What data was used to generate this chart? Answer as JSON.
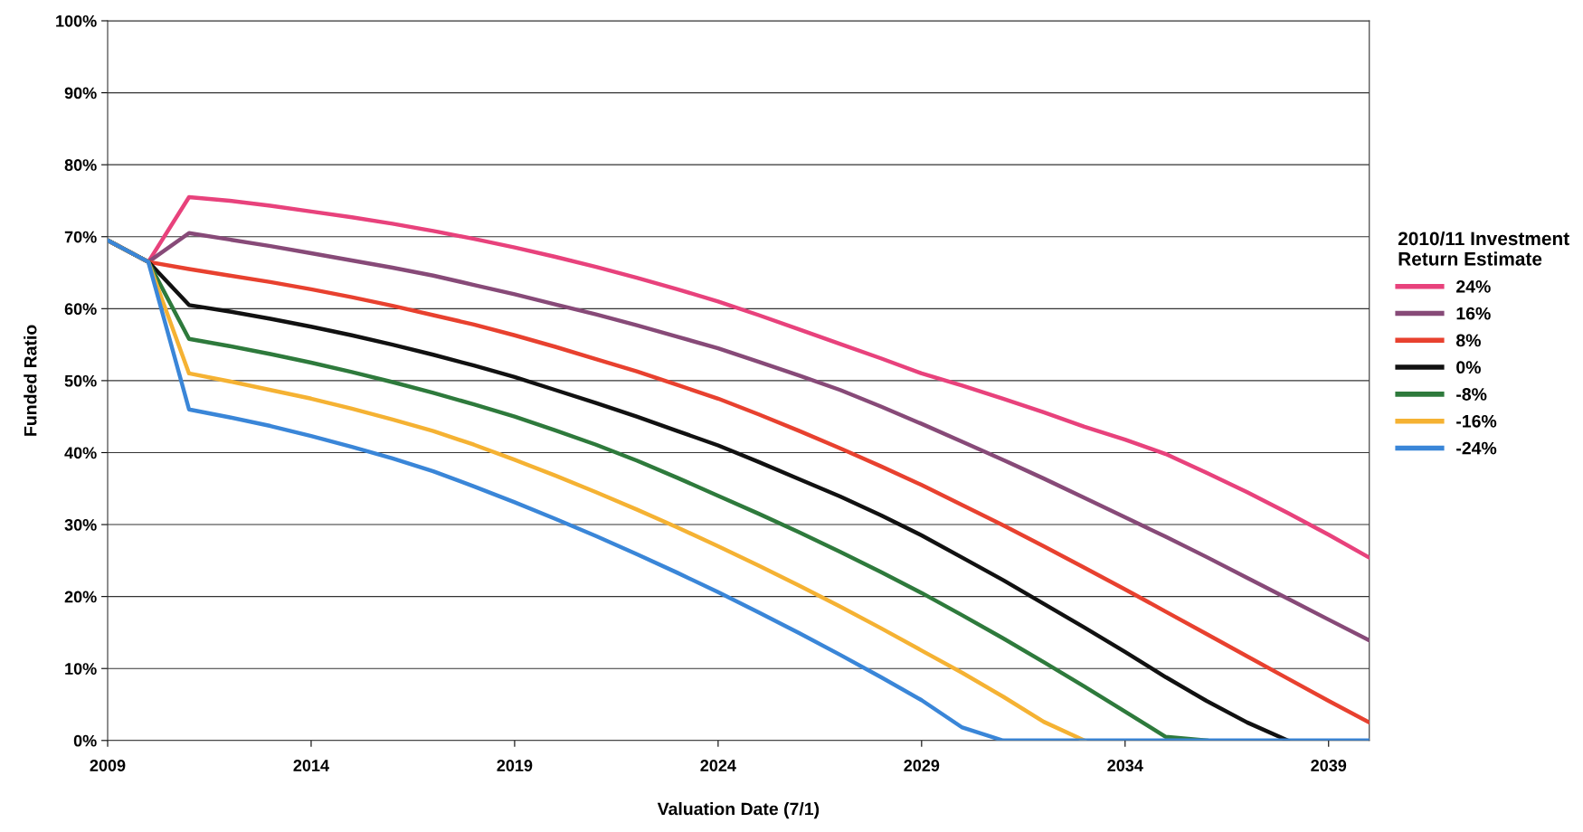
{
  "chart_data": {
    "type": "line",
    "xlabel": "Valuation Date (7/1)",
    "ylabel": "Funded Ratio",
    "legend_title": "2010/11 Investment\nReturn Estimate",
    "x": [
      2009,
      2010,
      2011,
      2012,
      2013,
      2014,
      2015,
      2016,
      2017,
      2018,
      2019,
      2020,
      2021,
      2022,
      2023,
      2024,
      2025,
      2026,
      2027,
      2028,
      2029,
      2030,
      2031,
      2032,
      2033,
      2034,
      2035,
      2036,
      2037,
      2038,
      2039,
      2040
    ],
    "series": [
      {
        "name": "24%",
        "color": "#e8427c",
        "values": [
          69.5,
          66.5,
          75.5,
          75,
          74.3,
          73.5,
          72.7,
          71.8,
          70.8,
          69.7,
          68.5,
          67.2,
          65.8,
          64.3,
          62.7,
          61,
          59.1,
          57.1,
          55.1,
          53.1,
          51,
          49.3,
          47.5,
          45.6,
          43.6,
          41.8,
          39.8,
          37.2,
          34.5,
          31.6,
          28.6,
          25.4
        ]
      },
      {
        "name": "16%",
        "color": "#874a78",
        "values": [
          69.5,
          66.5,
          70.5,
          69.6,
          68.7,
          67.7,
          66.7,
          65.7,
          64.6,
          63.3,
          62,
          60.6,
          59.2,
          57.7,
          56.1,
          54.5,
          52.6,
          50.7,
          48.7,
          46.4,
          44,
          41.5,
          39,
          36.4,
          33.7,
          31,
          28.3,
          25.5,
          22.6,
          19.7,
          16.8,
          13.9
        ]
      },
      {
        "name": "8%",
        "color": "#e8412f",
        "values": [
          69.5,
          66.5,
          65.5,
          64.6,
          63.7,
          62.7,
          61.6,
          60.4,
          59.1,
          57.8,
          56.3,
          54.7,
          53,
          51.3,
          49.4,
          47.5,
          45.3,
          43,
          40.6,
          38.1,
          35.5,
          32.7,
          29.9,
          27,
          24,
          21,
          17.9,
          14.8,
          11.7,
          8.6,
          5.5,
          2.5
        ]
      },
      {
        "name": "0%",
        "color": "#111111",
        "values": [
          69.5,
          66.5,
          60.5,
          59.6,
          58.6,
          57.5,
          56.3,
          55,
          53.6,
          52.1,
          50.5,
          48.7,
          46.9,
          45,
          43,
          41,
          38.7,
          36.3,
          33.9,
          31.3,
          28.5,
          25.4,
          22.3,
          19,
          15.7,
          12.3,
          8.8,
          5.5,
          2.5,
          0,
          null,
          null
        ]
      },
      {
        "name": "-8%",
        "color": "#2e7a3c",
        "values": [
          69.5,
          66.5,
          55.8,
          54.8,
          53.7,
          52.5,
          51.2,
          49.8,
          48.3,
          46.7,
          45,
          43.1,
          41.1,
          38.9,
          36.5,
          34,
          31.5,
          28.9,
          26.2,
          23.4,
          20.5,
          17.4,
          14.2,
          10.9,
          7.5,
          4,
          0.5,
          0,
          null,
          null,
          null,
          null
        ]
      },
      {
        "name": "-16%",
        "color": "#f5b233",
        "values": [
          69.5,
          66.5,
          51,
          49.9,
          48.7,
          47.5,
          46.1,
          44.6,
          43,
          41.1,
          39,
          36.8,
          34.5,
          32.1,
          29.6,
          27,
          24.3,
          21.5,
          18.6,
          15.6,
          12.5,
          9.4,
          6.1,
          2.6,
          0,
          null,
          null,
          null,
          null,
          null,
          null,
          null
        ]
      },
      {
        "name": "-24%",
        "color": "#3a86d8",
        "values": [
          69.5,
          66.5,
          46,
          44.9,
          43.7,
          42.3,
          40.8,
          39.2,
          37.4,
          35.3,
          33.1,
          30.8,
          28.4,
          25.9,
          23.3,
          20.6,
          17.8,
          14.9,
          11.9,
          8.8,
          5.6,
          1.8,
          0,
          0,
          0,
          0,
          0,
          0,
          0,
          0,
          0,
          0
        ]
      }
    ],
    "xlim": [
      2009,
      2040
    ],
    "xticks": [
      2009,
      2014,
      2019,
      2024,
      2029,
      2034,
      2039
    ],
    "ylim": [
      0,
      100
    ],
    "yticks": [
      {
        "value": 0,
        "label": "0%"
      },
      {
        "value": 10,
        "label": "10%"
      },
      {
        "value": 20,
        "label": "20%"
      },
      {
        "value": 30,
        "label": "30%"
      },
      {
        "value": 40,
        "label": "40%"
      },
      {
        "value": 50,
        "label": "50%"
      },
      {
        "value": 60,
        "label": "60%"
      },
      {
        "value": 70,
        "label": "70%"
      },
      {
        "value": 80,
        "label": "80%"
      },
      {
        "value": 90,
        "label": "90%"
      },
      {
        "value": 100,
        "label": "100%"
      }
    ],
    "grid": "y",
    "legend": "right",
    "marker": "none",
    "line_style": "solid"
  }
}
